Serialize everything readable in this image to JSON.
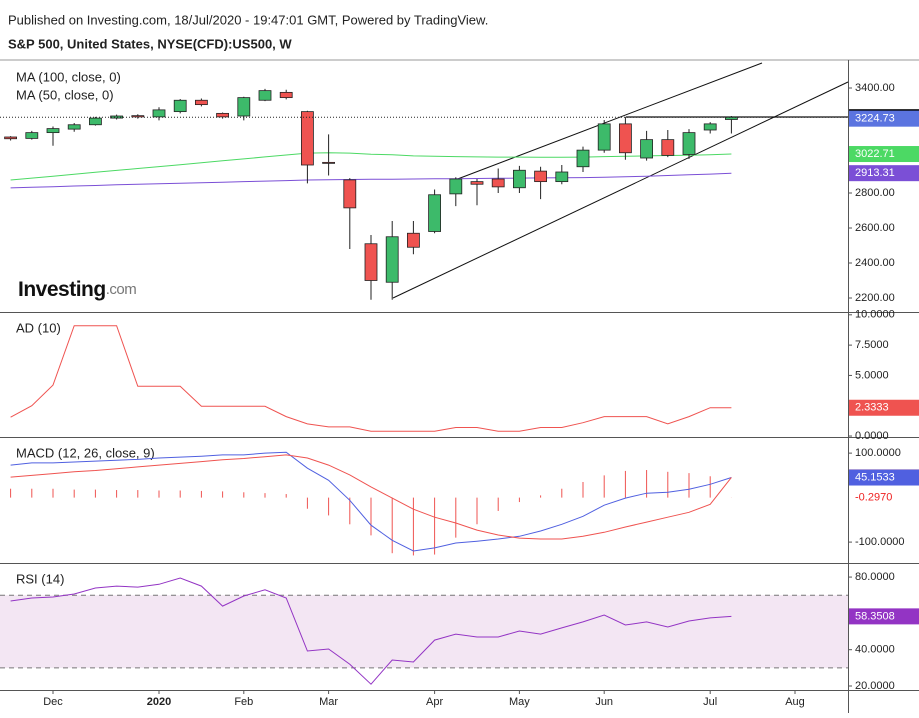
{
  "header": {
    "published": "Published on Investing.com, 18/Jul/2020 - 19:47:01 GMT, Powered by TradingView."
  },
  "chart_data": [
    {
      "type": "candlestick",
      "title": "S&P 500, United States, NYSE(CFD):US500, W",
      "watermark": [
        "Investing",
        ".com"
      ],
      "categories": [
        null,
        null,
        "Dec",
        null,
        null,
        null,
        null,
        "2020",
        null,
        null,
        null,
        "Feb",
        null,
        null,
        null,
        "Mar",
        null,
        null,
        null,
        null,
        "Apr",
        null,
        null,
        null,
        "May",
        null,
        null,
        null,
        "Jun",
        null,
        null,
        null,
        null,
        "Jul",
        null,
        null,
        null,
        "Aug"
      ],
      "open": [
        3120,
        3112,
        3145,
        3165,
        3190,
        3228,
        3242,
        3235,
        3265,
        3330,
        3255,
        3240,
        3330,
        3375,
        3265,
        2975,
        2875,
        2510,
        2290,
        2570,
        2580,
        2795,
        2865,
        2880,
        2830,
        2925,
        2865,
        2950,
        3045,
        3195,
        3000,
        3105,
        3020,
        3160,
        3220,
        null,
        null,
        null
      ],
      "high": [
        3125,
        3155,
        3180,
        3200,
        3235,
        3248,
        3250,
        3290,
        3337,
        3340,
        3260,
        3350,
        3395,
        3390,
        3270,
        3135,
        2885,
        2560,
        2640,
        2640,
        2820,
        2890,
        2880,
        2940,
        2955,
        2950,
        2960,
        3065,
        3217,
        3235,
        3155,
        3160,
        3165,
        3205,
        3240,
        null,
        null,
        null
      ],
      "low": [
        3100,
        3105,
        3070,
        3150,
        3185,
        3220,
        3225,
        3215,
        3255,
        3295,
        3225,
        3215,
        3325,
        3335,
        2855,
        2900,
        2480,
        2190,
        2190,
        2450,
        2570,
        2725,
        2730,
        2800,
        2800,
        2765,
        2850,
        2920,
        3030,
        2990,
        2985,
        3005,
        2995,
        3140,
        3140,
        null,
        null,
        null
      ],
      "close": [
        3110,
        3145,
        3168,
        3190,
        3228,
        3240,
        3235,
        3275,
        3330,
        3305,
        3235,
        3345,
        3385,
        3345,
        2960,
        2970,
        2715,
        2300,
        2550,
        2490,
        2790,
        2880,
        2850,
        2835,
        2930,
        2865,
        2920,
        3045,
        3195,
        3030,
        3105,
        3015,
        3145,
        3195,
        3233.13,
        null,
        null,
        null
      ],
      "up_color": "#3dba6a",
      "down_color": "#ef5350",
      "series": [
        {
          "name": "MA (100, close, 0)",
          "color": "#7b4fd6",
          "values": [
            2829,
            2833,
            2836,
            2840,
            2843,
            2847,
            2850,
            2853,
            2856,
            2859,
            2862,
            2865,
            2868,
            2871,
            2874,
            2876,
            2877,
            2878,
            2879,
            2880,
            2881,
            2882,
            2883,
            2884,
            2885,
            2886,
            2887,
            2888,
            2890,
            2893,
            2896,
            2900,
            2904,
            2908,
            2913.31,
            null,
            null,
            null
          ]
        },
        {
          "name": "MA (50, close, 0)",
          "color": "#4cd964",
          "values": [
            2874,
            2885,
            2896,
            2907,
            2918,
            2929,
            2940,
            2951,
            2962,
            2973,
            2984,
            2995,
            3006,
            3017,
            3028,
            3030,
            3028,
            3022,
            3018,
            3012,
            3010,
            3008,
            3006,
            3005,
            3005,
            3004,
            3004,
            3005,
            3008,
            3010,
            3012,
            3014,
            3016,
            3019,
            3022.71,
            null,
            null,
            null
          ]
        }
      ],
      "markers": [
        {
          "value": 3233.13,
          "color": "#000000",
          "style": "filled",
          "dotted": true
        },
        {
          "value": 3224.73,
          "color": "#5b74e0",
          "style": "filled"
        },
        {
          "value": 3022.71,
          "color": "#4cd964",
          "style": "filled"
        },
        {
          "value": 2913.31,
          "color": "#7b4fd6",
          "style": "filled"
        }
      ],
      "ylim": [
        2120,
        3560
      ],
      "yticks": [
        {
          "value": 2200,
          "label": "2200.00"
        },
        {
          "value": 2400,
          "label": "2400.00"
        },
        {
          "value": 2600,
          "label": "2600.00"
        },
        {
          "value": 2800,
          "label": "2800.00"
        },
        {
          "value": 3000,
          "label": "3000.00"
        },
        {
          "value": 3200,
          "label": "3200.00"
        },
        {
          "value": 3400,
          "label": "3400.00"
        }
      ]
    },
    {
      "type": "line",
      "title": "AD (10)",
      "series": [
        {
          "name": "AD",
          "color": "#ef5350",
          "values": [
            1.55,
            2.5,
            4.2,
            9.1,
            9.1,
            9.1,
            4.1,
            4.1,
            4.1,
            2.45,
            2.45,
            2.45,
            2.45,
            1.6,
            1.0,
            0.75,
            0.75,
            0.4,
            0.4,
            0.4,
            0.4,
            0.7,
            0.7,
            0.4,
            0.4,
            0.7,
            0.7,
            1.1,
            1.6,
            1.6,
            1.6,
            1.0,
            1.6,
            2.3333,
            2.3333,
            null,
            null,
            null
          ]
        }
      ],
      "markers": [
        {
          "value": 2.3333,
          "color": "#ef5350",
          "style": "filled"
        }
      ],
      "ylim": [
        -0.08,
        10.15
      ],
      "yticks": [
        {
          "value": 0,
          "label": "0.0000"
        },
        {
          "value": 2.5,
          "label": "2.5000"
        },
        {
          "value": 5,
          "label": "5.0000"
        },
        {
          "value": 7.5,
          "label": "7.5000"
        },
        {
          "value": 10,
          "label": "10.0000"
        }
      ]
    },
    {
      "type": "macd",
      "title": "MACD (12, 26, close, 9)",
      "series": [
        {
          "name": "MACD",
          "color": "#5060e0",
          "values": [
            73,
            78,
            78,
            80,
            82,
            84,
            86,
            89,
            91,
            93,
            96,
            96,
            100,
            102,
            66,
            39,
            -6,
            -62,
            -96,
            -120,
            -113,
            -102,
            -98,
            -93,
            -87,
            -75,
            -60,
            -42,
            -17,
            -1,
            10,
            12,
            19,
            30,
            45.1533,
            null,
            null,
            null
          ]
        },
        {
          "name": "Signal",
          "color": "#ef5350",
          "values": [
            46,
            50,
            54,
            58,
            61,
            65,
            69,
            73,
            77,
            81,
            85,
            88,
            92,
            96,
            89,
            73,
            51,
            24,
            -1,
            -26,
            -44,
            -57,
            -73,
            -84,
            -91,
            -93,
            -93,
            -87,
            -78,
            -66,
            -55,
            -44,
            -33,
            -15,
            45.4503,
            null,
            null,
            null
          ]
        }
      ],
      "histogram": {
        "name": "Histogram",
        "color": "#ef5350",
        "values": [
          20,
          20,
          20,
          18,
          18,
          17,
          17,
          16,
          16,
          15,
          14,
          12,
          10,
          8,
          -25,
          -40,
          -60,
          -85,
          -125,
          -130,
          -128,
          -90,
          -60,
          -30,
          -10,
          5,
          20,
          35,
          50,
          60,
          62,
          58,
          55,
          48,
          -0.297,
          null,
          null,
          null
        ]
      },
      "markers": [
        {
          "value": 45.4503,
          "color": "#ef5350",
          "style": "filled"
        },
        {
          "value": 45.1533,
          "color": "#5060e0",
          "style": "filled"
        },
        {
          "value": -0.297,
          "label": "-0.2970",
          "color": "#ef2020",
          "style": "text"
        }
      ],
      "ylim": [
        -147,
        134
      ],
      "yticks": [
        {
          "value": 100,
          "label": "100.0000"
        },
        {
          "value": -100,
          "label": "-100.0000"
        }
      ]
    },
    {
      "type": "line",
      "title": "RSI (14)",
      "series": [
        {
          "name": "RSI",
          "color": "#9334c4",
          "values": [
            66.8,
            68.5,
            69,
            70.7,
            74,
            75,
            74.5,
            76,
            79.5,
            75,
            64,
            69.6,
            73,
            68.5,
            39.3,
            40.4,
            32,
            21,
            34.3,
            33.2,
            45.3,
            48.6,
            47,
            47,
            50.3,
            48.6,
            52,
            55.3,
            59.1,
            53.6,
            55.3,
            52.5,
            55.8,
            57.5,
            58.3508,
            null,
            null,
            null
          ]
        }
      ],
      "bands": [
        30,
        70
      ],
      "band_color": "#f3e6f3",
      "markers": [
        {
          "value": 58.3508,
          "color": "#9334c4",
          "style": "filled"
        }
      ],
      "ylim": [
        17.8,
        87.2
      ],
      "yticks": [
        {
          "value": 20,
          "label": "20.0000"
        },
        {
          "value": 40,
          "label": "40.0000"
        },
        {
          "value": 80,
          "label": "80.0000"
        }
      ]
    }
  ]
}
